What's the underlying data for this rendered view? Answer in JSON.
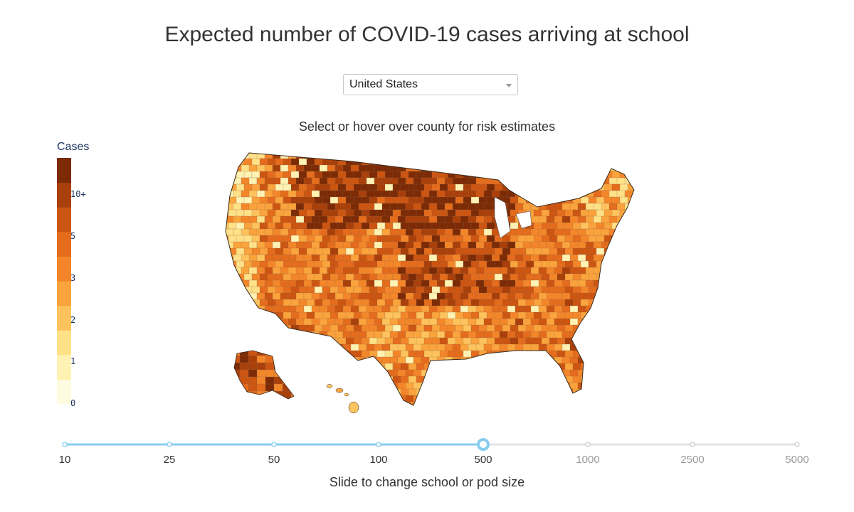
{
  "title": "Expected number of COVID-19 cases arriving at school",
  "dropdown": {
    "selected": "United States"
  },
  "map_subtitle": "Select or hover over county for risk estimates",
  "legend": {
    "title": "Cases",
    "ticks": [
      "10+",
      "5",
      "3",
      "2",
      "1",
      "0"
    ],
    "colors": [
      "#fffbe0",
      "#fff2b3",
      "#ffe188",
      "#fec35c",
      "#fba33c",
      "#f4862a",
      "#e46c1c",
      "#cc5512",
      "#a9400b",
      "#7c2b06"
    ]
  },
  "slider": {
    "options": [
      "10",
      "25",
      "50",
      "100",
      "500",
      "1000",
      "2500",
      "5000"
    ],
    "selected_index": 4,
    "active_color": "#88cdef",
    "caption": "Slide to change school or pod size"
  }
}
